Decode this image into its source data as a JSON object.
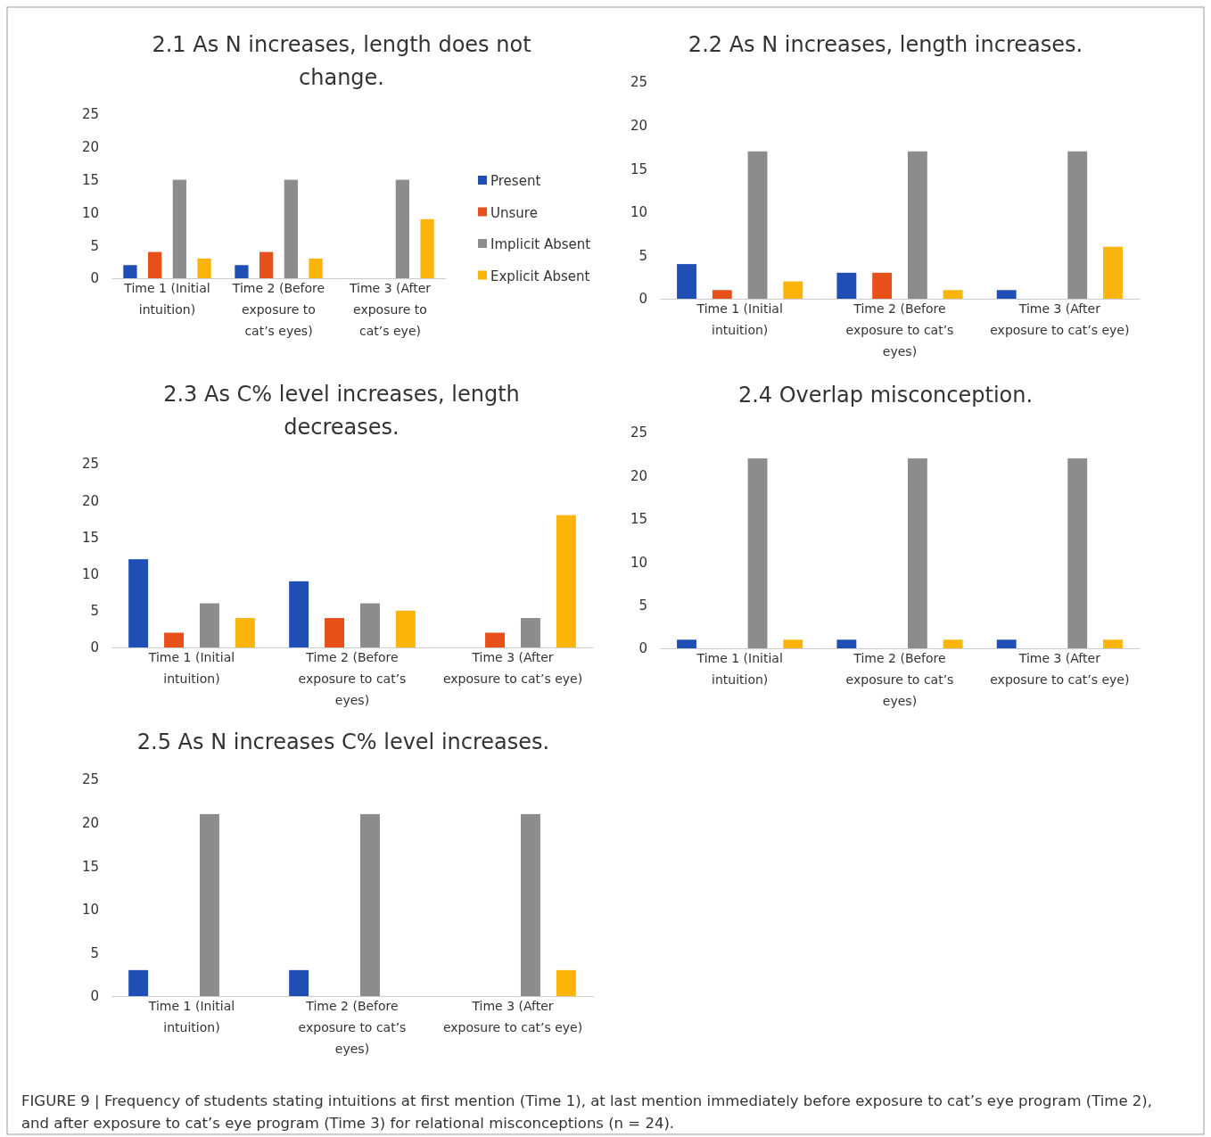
{
  "chart_data": [
    {
      "type": "bar",
      "title": "2.1 As N increases, length does not change.",
      "categories": [
        "Time 1 (Initial intuition)",
        "Time 2 (Before exposure to cat’s eyes)",
        "Time 3 (After exposure to cat’s eye)"
      ],
      "ylim": [
        0,
        25
      ],
      "yticks": [
        0,
        5,
        10,
        15,
        20,
        25
      ],
      "grid": false,
      "legend": "right",
      "series": [
        {
          "name": "Present",
          "color": "#1f4eb4",
          "values": [
            2,
            2,
            0
          ]
        },
        {
          "name": "Unsure",
          "color": "#e8501a",
          "values": [
            4,
            4,
            0
          ]
        },
        {
          "name": "Implicit Absent",
          "color": "#8c8c8c",
          "values": [
            15,
            15,
            15
          ]
        },
        {
          "name": "Explicit Absent",
          "color": "#fbb40a",
          "values": [
            3,
            3,
            9
          ]
        }
      ]
    },
    {
      "type": "bar",
      "title": "2.2 As N increases, length increases.",
      "categories": [
        "Time 1 (Initial intuition)",
        "Time 2 (Before exposure to cat’s eyes)",
        "Time 3 (After exposure to cat’s eye)"
      ],
      "ylim": [
        0,
        25
      ],
      "yticks": [
        0,
        5,
        10,
        15,
        20,
        25
      ],
      "grid": false,
      "series": [
        {
          "color": "#1f4eb4",
          "values": [
            4,
            3,
            1
          ]
        },
        {
          "color": "#e8501a",
          "values": [
            1,
            3,
            0
          ]
        },
        {
          "color": "#8c8c8c",
          "values": [
            17,
            17,
            17
          ]
        },
        {
          "color": "#fbb40a",
          "values": [
            2,
            1,
            6
          ]
        }
      ]
    },
    {
      "type": "bar",
      "title": "2.3 As C% level increases, length decreases.",
      "categories": [
        "Time 1 (Initial intuition)",
        "Time 2 (Before exposure to cat’s eyes)",
        "Time 3 (After exposure to cat’s eye)"
      ],
      "ylim": [
        0,
        25
      ],
      "yticks": [
        0,
        5,
        10,
        15,
        20,
        25
      ],
      "grid": false,
      "series": [
        {
          "color": "#1f4eb4",
          "values": [
            12,
            9,
            0
          ]
        },
        {
          "color": "#e8501a",
          "values": [
            2,
            4,
            2
          ]
        },
        {
          "color": "#8c8c8c",
          "values": [
            6,
            6,
            4
          ]
        },
        {
          "color": "#fbb40a",
          "values": [
            4,
            5,
            18
          ]
        }
      ]
    },
    {
      "type": "bar",
      "title": "2.4 Overlap misconception.",
      "categories": [
        "Time 1 (Initial intuition)",
        "Time 2 (Before exposure to cat’s eyes)",
        "Time 3 (After exposure to cat’s eye)"
      ],
      "ylim": [
        0,
        25
      ],
      "yticks": [
        0,
        5,
        10,
        15,
        20,
        25
      ],
      "grid": false,
      "series": [
        {
          "color": "#1f4eb4",
          "values": [
            1,
            1,
            1
          ]
        },
        {
          "color": "#e8501a",
          "values": [
            0,
            0,
            0
          ]
        },
        {
          "color": "#8c8c8c",
          "values": [
            22,
            22,
            22
          ]
        },
        {
          "color": "#fbb40a",
          "values": [
            1,
            1,
            1
          ]
        }
      ]
    },
    {
      "type": "bar",
      "title": "2.5 As N increases C% level increases.",
      "categories": [
        "Time 1 (Initial intuition)",
        "Time 2 (Before exposure to cat’s eyes)",
        "Time 3 (After exposure to cat’s eye)"
      ],
      "ylim": [
        0,
        25
      ],
      "yticks": [
        0,
        5,
        10,
        15,
        20,
        25
      ],
      "grid": false,
      "annotations": [
        "FIGURE 9 | Frequency of students stating intuitions at first mention (Time 1), at last mention immediately before exposure to cat’s eye program (Time 2), and after exposure to cat’s eye program (Time 3) for relational misconceptions (n = 24)."
      ],
      "series": [
        {
          "color": "#1f4eb4",
          "values": [
            3,
            3,
            0
          ]
        },
        {
          "color": "#e8501a",
          "values": [
            0,
            0,
            0
          ]
        },
        {
          "color": "#8c8c8c",
          "values": [
            21,
            21,
            21
          ]
        },
        {
          "color": "#fbb40a",
          "values": [
            0,
            0,
            3
          ]
        }
      ]
    }
  ]
}
